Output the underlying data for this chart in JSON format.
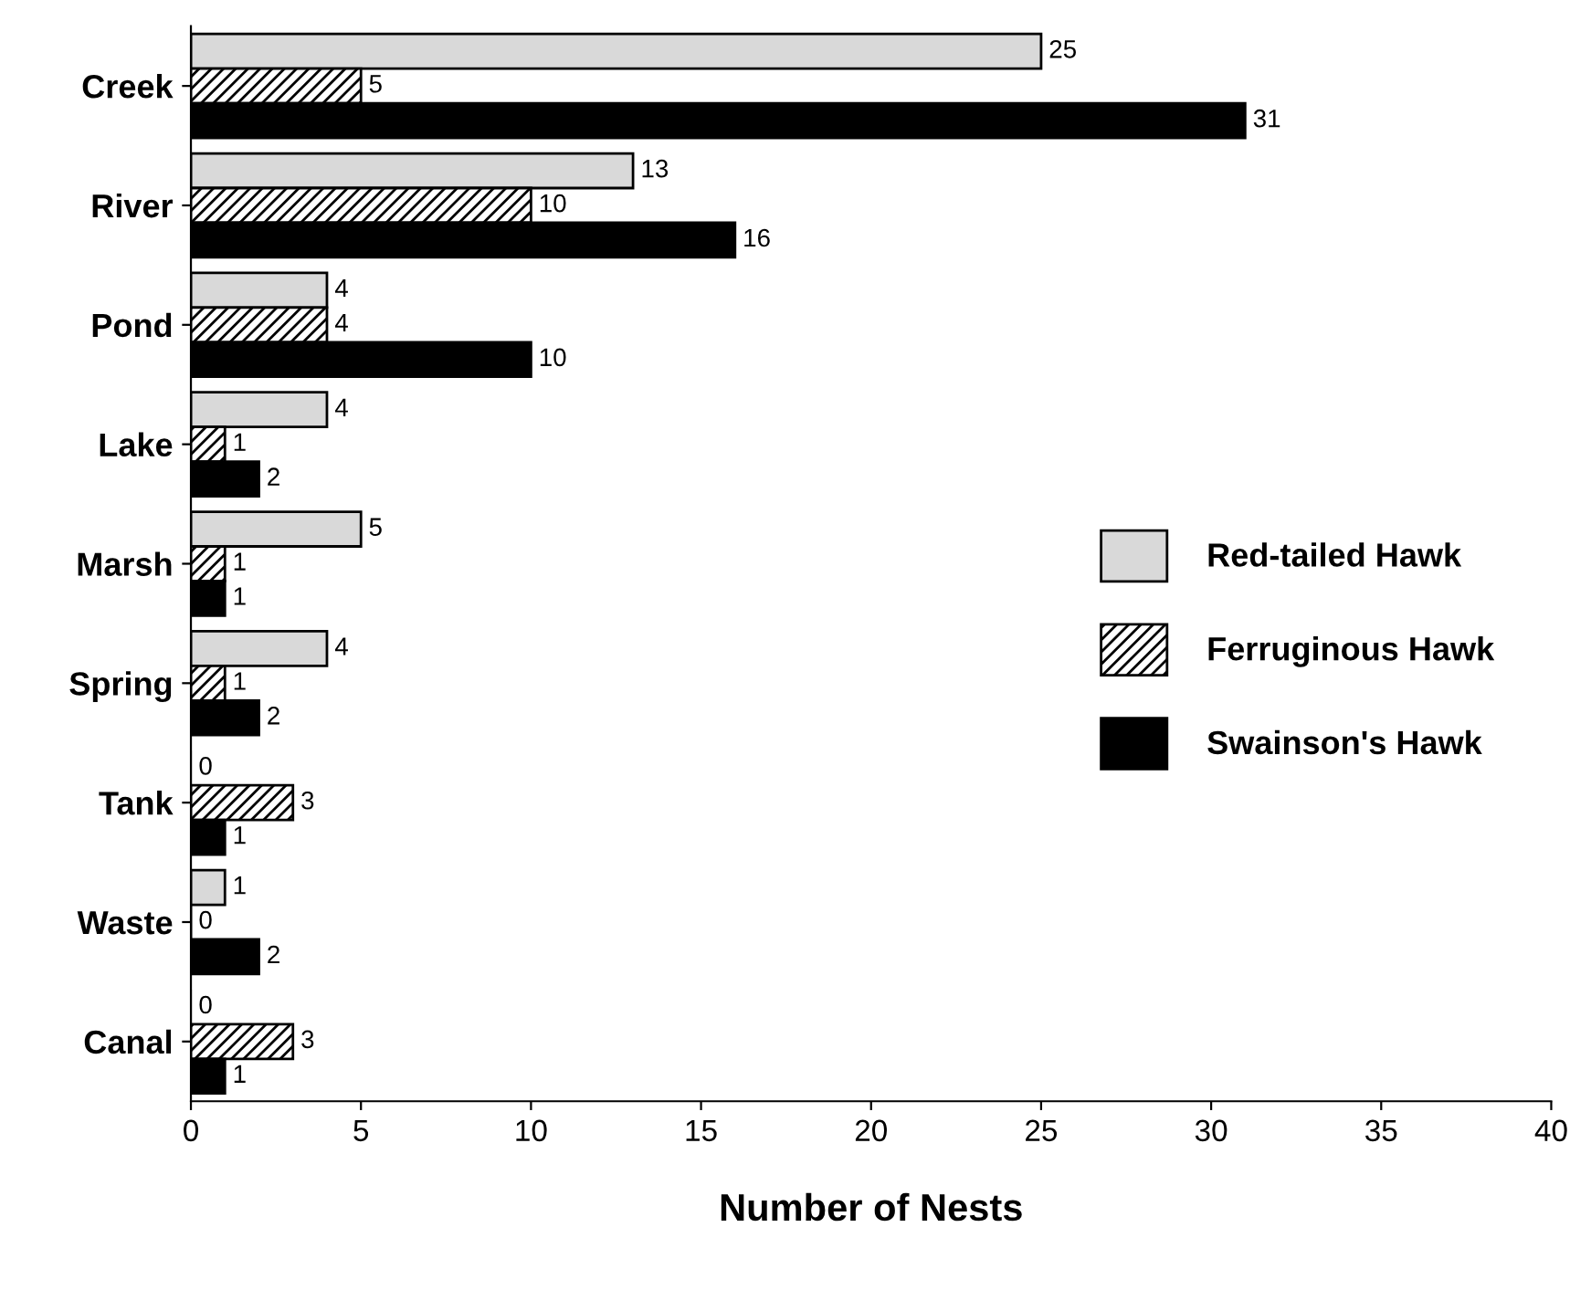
{
  "chart_data": {
    "type": "bar",
    "orientation": "horizontal",
    "xlabel": "Number of Nests",
    "categories": [
      "Creek",
      "River",
      "Pond",
      "Lake",
      "Marsh",
      "Spring",
      "Tank",
      "Waste",
      "Canal"
    ],
    "series": [
      {
        "name": "Red-tailed Hawk",
        "color": "#d9d9d9",
        "values": [
          25,
          13,
          4,
          4,
          5,
          4,
          0,
          1,
          0
        ]
      },
      {
        "name": "Ferruginous Hawk",
        "color": "#000000",
        "values": [
          5,
          10,
          4,
          1,
          1,
          1,
          3,
          0,
          3
        ]
      },
      {
        "name": "Swainson's Hawk",
        "color": "#000000",
        "values": [
          31,
          16,
          10,
          2,
          1,
          2,
          1,
          2,
          1
        ]
      }
    ],
    "xlim": [
      0,
      40
    ],
    "xticks": [
      0,
      5,
      10,
      15,
      20,
      25,
      30,
      35,
      40
    ],
    "data_labels": true,
    "legend": "right",
    "grid": false
  }
}
